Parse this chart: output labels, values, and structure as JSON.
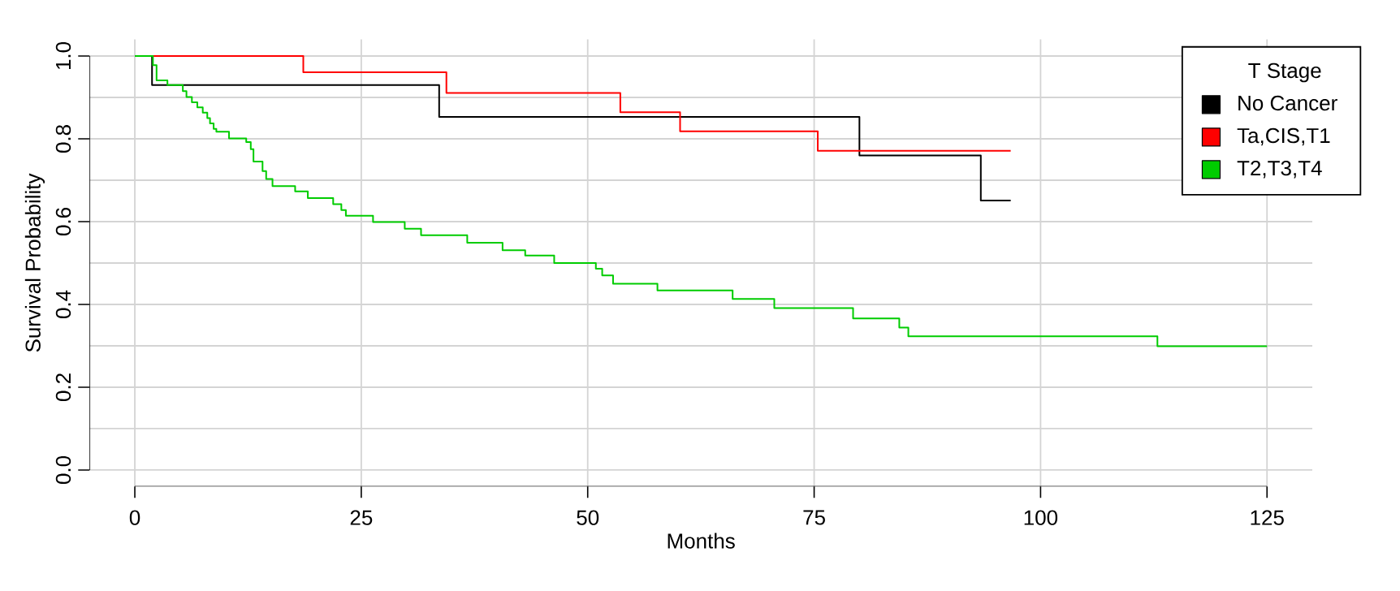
{
  "chart_data": {
    "type": "step",
    "xlabel": "Months",
    "ylabel": "Survival Probability",
    "legend_title": "T Stage",
    "legend": "top right",
    "grid": true,
    "xlim": [
      -5,
      130
    ],
    "ylim": [
      -0.04,
      1.04
    ],
    "xticks": [
      0,
      25,
      50,
      75,
      100,
      125
    ],
    "yticks": [
      {
        "value": 0,
        "label": "0.0"
      },
      {
        "value": 0.1,
        "label": null
      },
      {
        "value": 0.2,
        "label": "0.2"
      },
      {
        "value": 0.3,
        "label": null
      },
      {
        "value": 0.4,
        "label": "0.4"
      },
      {
        "value": 0.5,
        "label": null
      },
      {
        "value": 0.6,
        "label": "0.6"
      },
      {
        "value": 0.7,
        "label": null
      },
      {
        "value": 0.8,
        "label": "0.8"
      },
      {
        "value": 0.9,
        "label": null
      },
      {
        "value": 1,
        "label": "1.0"
      }
    ],
    "series": [
      {
        "name": "No Cancer",
        "color": "#000000",
        "x": [
          0,
          1.9,
          33.6,
          80.0,
          93.4,
          96.7
        ],
        "values": [
          1,
          0.93,
          0.853,
          0.76,
          0.651,
          0.651
        ]
      },
      {
        "name": "Ta,CIS,T1",
        "color": "#ff0000",
        "x": [
          0,
          18.6,
          34.4,
          53.6,
          60.2,
          75.4,
          96.7
        ],
        "values": [
          1,
          0.961,
          0.911,
          0.864,
          0.818,
          0.771,
          0.771
        ]
      },
      {
        "name": "T2,T3,T4",
        "color": "#00cc00",
        "x": [
          0,
          2.0,
          2.4,
          3.6,
          5.3,
          5.7,
          6.3,
          6.9,
          7.5,
          8.0,
          8.3,
          8.7,
          9.0,
          10.4,
          12.3,
          12.8,
          13.1,
          14.1,
          14.5,
          15.2,
          17.7,
          19.1,
          21.9,
          22.8,
          23.3,
          26.3,
          29.8,
          31.6,
          36.7,
          40.6,
          43.1,
          46.3,
          50.9,
          51.6,
          52.8,
          57.7,
          66.0,
          70.6,
          79.3,
          84.4,
          85.4,
          112.9,
          125.0
        ],
        "values": [
          1,
          0.978,
          0.941,
          0.93,
          0.915,
          0.901,
          0.888,
          0.876,
          0.863,
          0.85,
          0.837,
          0.824,
          0.817,
          0.801,
          0.792,
          0.775,
          0.745,
          0.722,
          0.703,
          0.686,
          0.673,
          0.657,
          0.642,
          0.628,
          0.614,
          0.599,
          0.583,
          0.567,
          0.549,
          0.531,
          0.518,
          0.5,
          0.486,
          0.47,
          0.45,
          0.434,
          0.413,
          0.391,
          0.366,
          0.344,
          0.323,
          0.299,
          0.299
        ]
      }
    ]
  }
}
